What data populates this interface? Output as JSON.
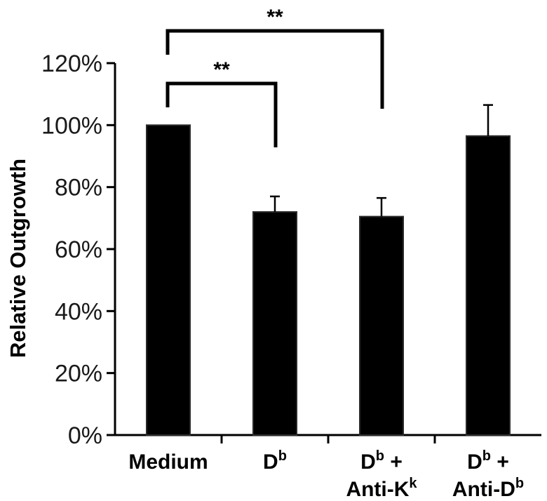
{
  "chart_data": {
    "type": "bar",
    "title": "",
    "xlabel": "",
    "ylabel": "Relative Outgrowth",
    "ylim": [
      0,
      120
    ],
    "yticks": [
      "0%",
      "20%",
      "40%",
      "60%",
      "80%",
      "100%",
      "120%"
    ],
    "grid": false,
    "categories": [
      {
        "lines": [
          [
            {
              "t": "Medium"
            }
          ]
        ]
      },
      {
        "lines": [
          [
            {
              "t": "D"
            },
            {
              "t": "b",
              "sup": true
            }
          ]
        ]
      },
      {
        "lines": [
          [
            {
              "t": "D"
            },
            {
              "t": "b",
              "sup": true
            },
            {
              "t": " +"
            }
          ],
          [
            {
              "t": "Anti-K"
            },
            {
              "t": "k",
              "sup": true
            }
          ]
        ]
      },
      {
        "lines": [
          [
            {
              "t": "D"
            },
            {
              "t": "b",
              "sup": true
            },
            {
              "t": " +"
            }
          ],
          [
            {
              "t": "Anti-D"
            },
            {
              "t": "b",
              "sup": true
            }
          ]
        ]
      }
    ],
    "values": [
      100,
      72,
      70.5,
      96.5
    ],
    "errors": [
      0,
      5,
      6,
      10
    ],
    "bar_color": "#000000",
    "significance": [
      {
        "from": 0,
        "to": 2,
        "label": "**"
      },
      {
        "from": 0,
        "to": 1,
        "label": "**"
      }
    ]
  }
}
